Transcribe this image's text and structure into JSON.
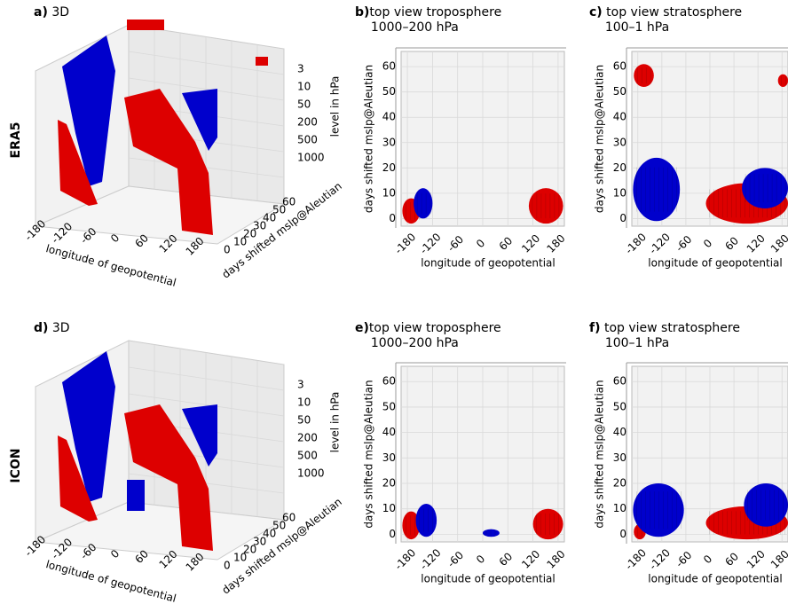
{
  "rows": [
    {
      "label": "ERA5"
    },
    {
      "label": "ICON"
    }
  ],
  "colors": {
    "positive": "#dd0000",
    "negative": "#0000cc",
    "pane": "#f2f2f2",
    "grid": "#d9d9d9"
  },
  "chart_data": [
    {
      "id": "a",
      "letter": "a)",
      "title": "3D",
      "type": "scatter",
      "xlabel": "longitude of geopotential",
      "ylabel": "days shifted mslp@Aleutian",
      "zlabel": "level in hPa",
      "xticks": [
        "-180",
        "-120",
        "-60",
        "0",
        "60",
        "120",
        "180"
      ],
      "yticks": [
        "0",
        "10",
        "20",
        "30",
        "40",
        "50",
        "60"
      ],
      "zticks": [
        "3",
        "10",
        "50",
        "200",
        "500",
        "1000"
      ]
    },
    {
      "id": "b",
      "letter": "b)",
      "title": "top view troposphere",
      "subtitle": "1000–200 hPa",
      "type": "scatter",
      "xlabel": "longitude of geopotential",
      "ylabel": "days shifted mslp@Aleutian",
      "xticks": [
        "-180",
        "-120",
        "-60",
        "0",
        "60",
        "120",
        "180"
      ],
      "yticks": [
        "0",
        "10",
        "20",
        "30",
        "40",
        "50",
        "60"
      ],
      "xlim": [
        -195,
        195
      ],
      "ylim": [
        -3,
        66
      ],
      "regions": [
        {
          "sign": "positive",
          "x": [
            -192,
            -150
          ],
          "y": [
            -2,
            8
          ]
        },
        {
          "sign": "negative",
          "x": [
            -165,
            -120
          ],
          "y": [
            0,
            12
          ]
        },
        {
          "sign": "positive",
          "x": [
            110,
            192
          ],
          "y": [
            -2,
            12
          ]
        }
      ]
    },
    {
      "id": "c",
      "letter": "c)",
      "title": "top view stratosphere",
      "subtitle": "100–1 hPa",
      "type": "scatter",
      "xlabel": "longitude of geopotential",
      "ylabel": "days shifted mslp@Aleutian",
      "xticks": [
        "-180",
        "-120",
        "-60",
        "0",
        "60",
        "120",
        "180"
      ],
      "yticks": [
        "0",
        "10",
        "20",
        "30",
        "40",
        "50",
        "60"
      ],
      "xlim": [
        -195,
        195
      ],
      "ylim": [
        -3,
        66
      ],
      "regions": [
        {
          "sign": "positive",
          "x": [
            -190,
            -140
          ],
          "y": [
            52,
            61
          ]
        },
        {
          "sign": "positive",
          "x": [
            170,
            195
          ],
          "y": [
            52,
            57
          ]
        },
        {
          "sign": "positive",
          "x": [
            -10,
            195
          ],
          "y": [
            -2,
            14
          ]
        },
        {
          "sign": "negative",
          "x": [
            -192,
            -75
          ],
          "y": [
            -1,
            24
          ]
        },
        {
          "sign": "negative",
          "x": [
            80,
            195
          ],
          "y": [
            4,
            20
          ]
        }
      ]
    },
    {
      "id": "d",
      "letter": "d)",
      "title": "3D",
      "type": "scatter",
      "xlabel": "longitude of geopotential",
      "ylabel": "days shifted mslp@Aleutian",
      "zlabel": "level in hPa",
      "xticks": [
        "-180",
        "-120",
        "-60",
        "0",
        "60",
        "120",
        "180"
      ],
      "yticks": [
        "0",
        "10",
        "20",
        "30",
        "40",
        "50",
        "60"
      ],
      "zticks": [
        "3",
        "10",
        "50",
        "200",
        "500",
        "1000"
      ]
    },
    {
      "id": "e",
      "letter": "e)",
      "title": "top view troposphere",
      "subtitle": "1000–200 hPa",
      "type": "scatter",
      "xlabel": "longitude of geopotential",
      "ylabel": "days shifted mslp@Aleutian",
      "xticks": [
        "-180",
        "-120",
        "-60",
        "0",
        "60",
        "120",
        "180"
      ],
      "yticks": [
        "0",
        "10",
        "20",
        "30",
        "40",
        "50",
        "60"
      ],
      "xlim": [
        -195,
        195
      ],
      "ylim": [
        -3,
        66
      ],
      "regions": [
        {
          "sign": "positive",
          "x": [
            -192,
            -150
          ],
          "y": [
            -2,
            9
          ]
        },
        {
          "sign": "negative",
          "x": [
            -160,
            -110
          ],
          "y": [
            -1,
            12
          ]
        },
        {
          "sign": "negative",
          "x": [
            0,
            40
          ],
          "y": [
            -1,
            2
          ]
        },
        {
          "sign": "positive",
          "x": [
            120,
            192
          ],
          "y": [
            -2,
            10
          ]
        }
      ]
    },
    {
      "id": "f",
      "letter": "f)",
      "title": "top view stratosphere",
      "subtitle": "100–1 hPa",
      "type": "scatter",
      "xlabel": "longitude of geopotential",
      "ylabel": "days shifted mslp@Aleutian",
      "xticks": [
        "-180",
        "-120",
        "-60",
        "0",
        "60",
        "120",
        "180"
      ],
      "yticks": [
        "0",
        "10",
        "20",
        "30",
        "40",
        "50",
        "60"
      ],
      "xlim": [
        -195,
        195
      ],
      "ylim": [
        -3,
        66
      ],
      "regions": [
        {
          "sign": "positive",
          "x": [
            -190,
            -160
          ],
          "y": [
            -2,
            4
          ]
        },
        {
          "sign": "negative",
          "x": [
            -192,
            -65
          ],
          "y": [
            -1,
            20
          ]
        },
        {
          "sign": "positive",
          "x": [
            -10,
            195
          ],
          "y": [
            -2,
            11
          ]
        },
        {
          "sign": "negative",
          "x": [
            85,
            195
          ],
          "y": [
            3,
            20
          ]
        }
      ]
    }
  ]
}
